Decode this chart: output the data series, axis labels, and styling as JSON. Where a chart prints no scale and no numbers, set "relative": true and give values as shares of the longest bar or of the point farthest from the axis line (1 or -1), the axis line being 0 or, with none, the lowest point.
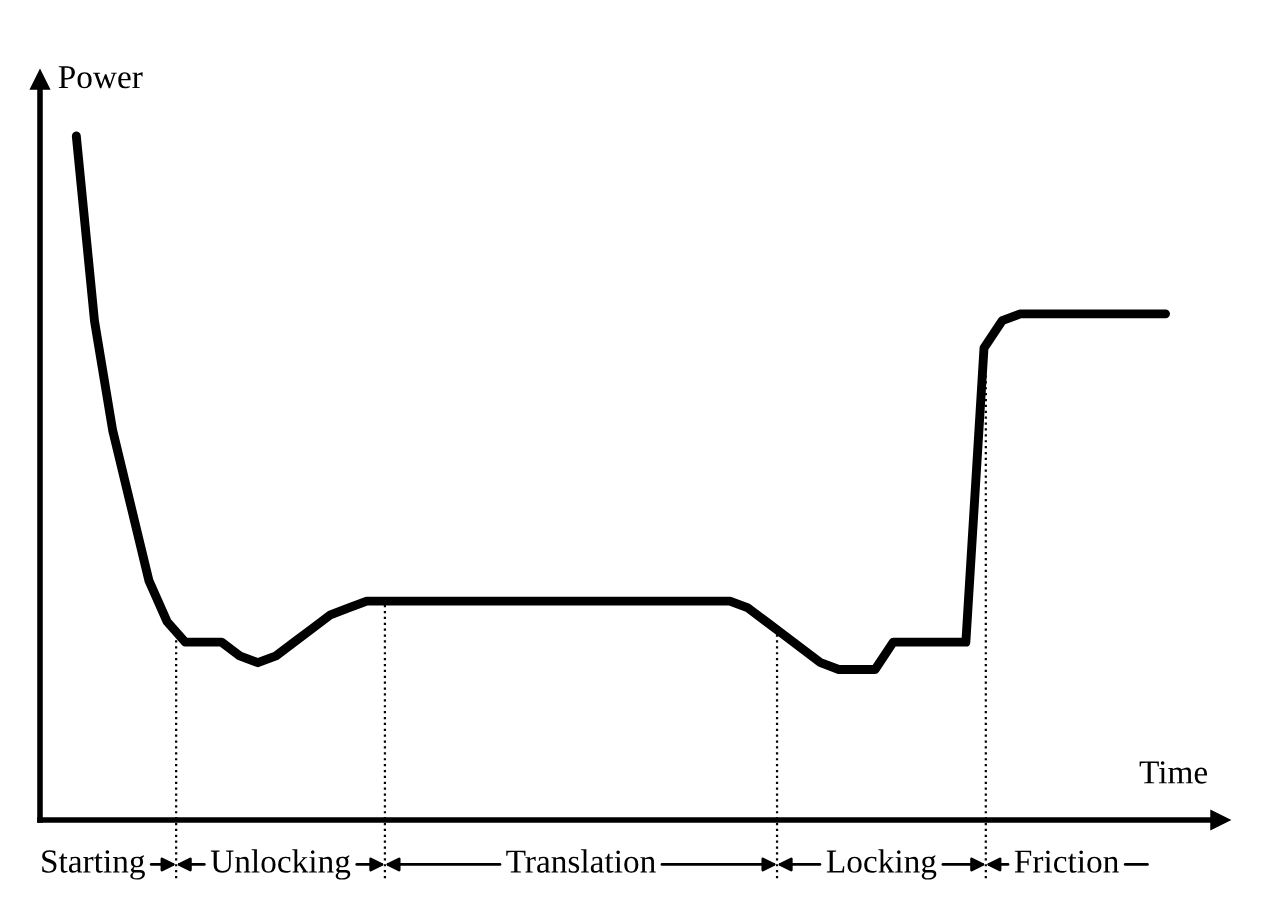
{
  "chart_data": {
    "type": "line",
    "relative": true,
    "xlabel": "Time",
    "ylabel": "Power",
    "color": "#000000",
    "marker": "none",
    "line_style": "solid",
    "categories": [
      null,
      null,
      null,
      null,
      null,
      null,
      null,
      null,
      null,
      null,
      null,
      null,
      null,
      null,
      null,
      null,
      null,
      null,
      null,
      null,
      null,
      null,
      null,
      null,
      null,
      null,
      null,
      null,
      null,
      null,
      null,
      null,
      null,
      null,
      null,
      null,
      null,
      null,
      null,
      null,
      null,
      null,
      null,
      null,
      null,
      null,
      null,
      null,
      null,
      null,
      null,
      null,
      null,
      null,
      null,
      null,
      null,
      null,
      null,
      null,
      null
    ],
    "series": [
      {
        "values": [
          1.0,
          0.73,
          0.57,
          0.46,
          0.35,
          0.29,
          0.26,
          0.26,
          0.26,
          0.24,
          0.23,
          0.24,
          0.26,
          0.28,
          0.3,
          0.31,
          0.32,
          0.32,
          0.32,
          0.32,
          0.32,
          0.32,
          0.32,
          0.32,
          0.32,
          0.32,
          0.32,
          0.32,
          0.32,
          0.32,
          0.32,
          0.32,
          0.32,
          0.32,
          0.32,
          0.32,
          0.32,
          0.31,
          0.29,
          0.27,
          0.25,
          0.23,
          0.22,
          0.22,
          0.22,
          0.26,
          0.26,
          0.26,
          0.26,
          0.26,
          0.69,
          0.73,
          0.74,
          0.74,
          0.74,
          0.74,
          0.74,
          0.74,
          0.74,
          0.74,
          0.74
        ]
      }
    ],
    "annotations": [
      "Starting",
      "Unlocking",
      "Translation",
      "Locking",
      "Friction"
    ]
  }
}
